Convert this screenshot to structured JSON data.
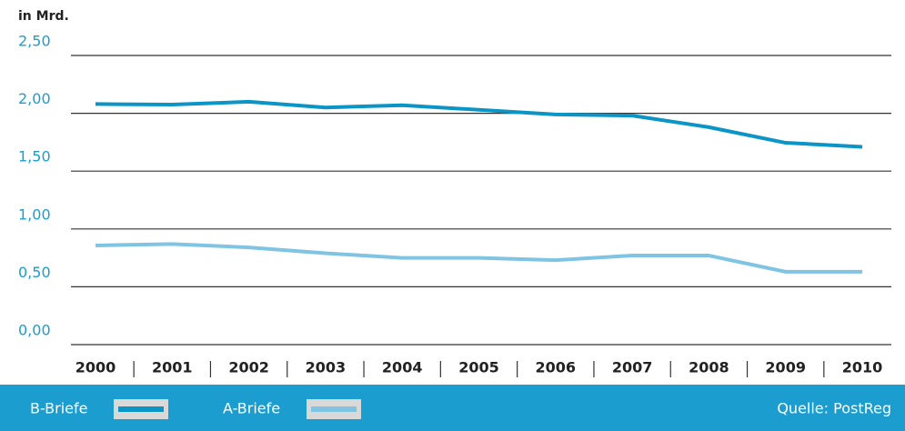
{
  "chart_data": {
    "type": "line",
    "y_label": "in Mrd.",
    "source": "Quelle: PostReg",
    "categories": [
      "2000",
      "2001",
      "2002",
      "2003",
      "2004",
      "2005",
      "2006",
      "2007",
      "2008",
      "2009",
      "2010"
    ],
    "series": [
      {
        "name": "B-Briefe",
        "color": "#0b95c7",
        "values": [
          2.08,
          2.075,
          2.1,
          2.05,
          2.07,
          2.03,
          1.99,
          1.98,
          1.88,
          1.745,
          1.71
        ]
      },
      {
        "name": "A-Briefe",
        "color": "#80c4e4",
        "values": [
          0.857,
          0.87,
          0.84,
          0.79,
          0.75,
          0.75,
          0.73,
          0.77,
          0.77,
          0.63,
          0.63
        ]
      }
    ],
    "ylim": [
      0,
      2.5
    ],
    "yticks": [
      {
        "value": 0,
        "label": "0,00"
      },
      {
        "value": 0.5,
        "label": "0,50"
      },
      {
        "value": 1,
        "label": "1,00"
      },
      {
        "value": 1.5,
        "label": "1,50"
      },
      {
        "value": 2,
        "label": "2,00"
      },
      {
        "value": 2.5,
        "label": "2,50"
      }
    ],
    "grid": true,
    "legend": "bottom"
  }
}
